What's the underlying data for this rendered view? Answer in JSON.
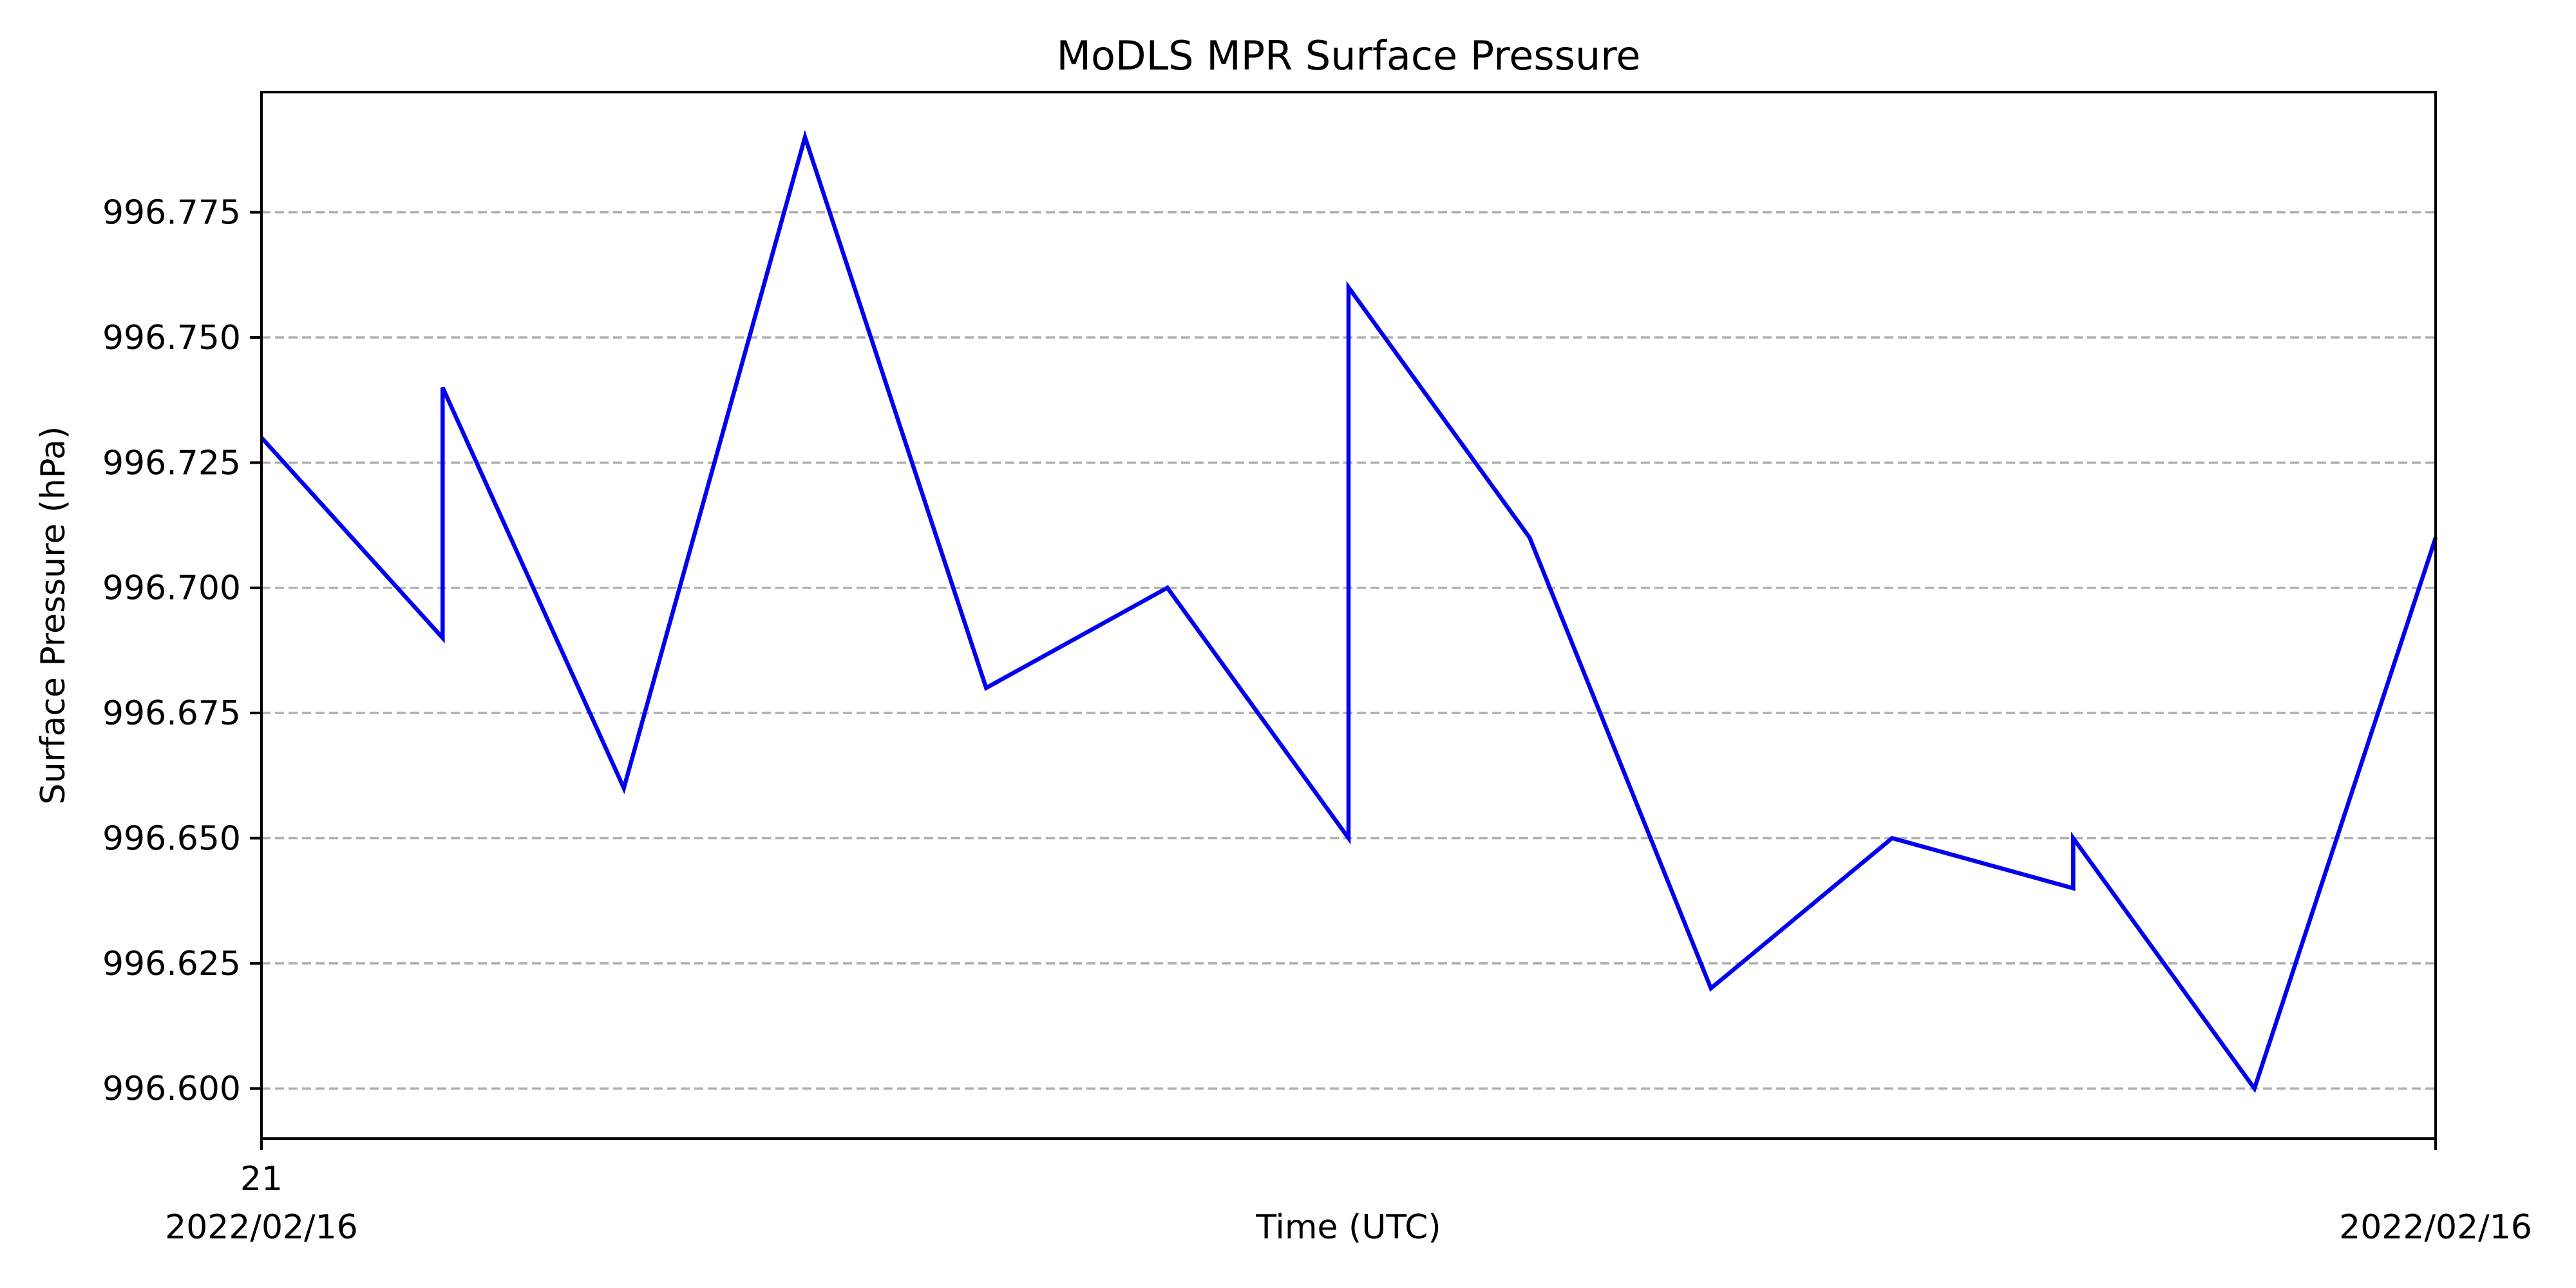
{
  "chart_data": {
    "type": "line",
    "title": "MoDLS MPR Surface Pressure",
    "xlabel": "Time (UTC)",
    "ylabel": "Surface Pressure (hPa)",
    "x_tick_labels": [
      {
        "line1": "21",
        "line2": "2022/02/16"
      },
      {
        "line1": "",
        "line2": "2022/02/16"
      }
    ],
    "y_ticks": [
      996.6,
      996.625,
      996.65,
      996.675,
      996.7,
      996.725,
      996.75,
      996.775
    ],
    "y_tick_labels": [
      "996.600",
      "996.625",
      "996.650",
      "996.675",
      "996.700",
      "996.725",
      "996.750",
      "996.775"
    ],
    "xlim": [
      0,
      12
    ],
    "ylim": [
      996.59,
      996.799
    ],
    "grid": "horizontal dashed",
    "series": [
      {
        "color": "#0000ee",
        "x": [
          0,
          1,
          1,
          2,
          3,
          4,
          5,
          6,
          6,
          7,
          8,
          9,
          10,
          10,
          11,
          12
        ],
        "values": [
          996.73,
          996.69,
          996.74,
          996.66,
          996.79,
          996.68,
          996.7,
          996.65,
          996.76,
          996.71,
          996.62,
          996.65,
          996.64,
          996.65,
          996.6,
          996.71
        ]
      }
    ]
  }
}
